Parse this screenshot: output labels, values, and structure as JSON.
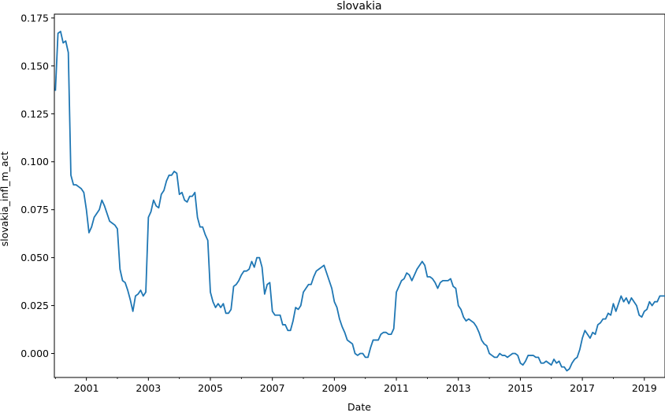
{
  "chart_data": {
    "type": "line",
    "title": "slovakia",
    "xlabel": "Date",
    "ylabel": "slovakia_infl_m_act",
    "x_range": [
      "2000-01",
      "2019-09"
    ],
    "ylim": [
      -0.0125,
      0.177
    ],
    "x_ticks": [
      "2001",
      "2003",
      "2005",
      "2007",
      "2009",
      "2011",
      "2013",
      "2015",
      "2017",
      "2019"
    ],
    "y_ticks": [
      "0.000",
      "0.025",
      "0.050",
      "0.075",
      "0.100",
      "0.125",
      "0.150",
      "0.175"
    ],
    "y_tick_values": [
      0.0,
      0.025,
      0.05,
      0.075,
      0.1,
      0.125,
      0.15,
      0.175
    ],
    "grid": false,
    "line_color": "#1f77b4",
    "series": [
      {
        "points": [
          [
            "2000-01",
            0.137
          ],
          [
            "2000-02",
            0.167
          ],
          [
            "2000-03",
            0.168
          ],
          [
            "2000-04",
            0.162
          ],
          [
            "2000-05",
            0.163
          ],
          [
            "2000-06",
            0.157
          ],
          [
            "2000-07",
            0.093
          ],
          [
            "2000-08",
            0.088
          ],
          [
            "2000-09",
            0.088
          ],
          [
            "2000-10",
            0.087
          ],
          [
            "2000-11",
            0.086
          ],
          [
            "2000-12",
            0.084
          ],
          [
            "2001-01",
            0.075
          ],
          [
            "2001-02",
            0.063
          ],
          [
            "2001-03",
            0.066
          ],
          [
            "2001-04",
            0.071
          ],
          [
            "2001-05",
            0.073
          ],
          [
            "2001-06",
            0.075
          ],
          [
            "2001-07",
            0.08
          ],
          [
            "2001-08",
            0.077
          ],
          [
            "2001-09",
            0.073
          ],
          [
            "2001-10",
            0.069
          ],
          [
            "2001-11",
            0.068
          ],
          [
            "2001-12",
            0.067
          ],
          [
            "2002-01",
            0.065
          ],
          [
            "2002-02",
            0.044
          ],
          [
            "2002-03",
            0.038
          ],
          [
            "2002-04",
            0.037
          ],
          [
            "2002-05",
            0.033
          ],
          [
            "2002-06",
            0.028
          ],
          [
            "2002-07",
            0.022
          ],
          [
            "2002-08",
            0.03
          ],
          [
            "2002-09",
            0.031
          ],
          [
            "2002-10",
            0.033
          ],
          [
            "2002-11",
            0.03
          ],
          [
            "2002-12",
            0.032
          ],
          [
            "2003-01",
            0.071
          ],
          [
            "2003-02",
            0.074
          ],
          [
            "2003-03",
            0.08
          ],
          [
            "2003-04",
            0.077
          ],
          [
            "2003-05",
            0.076
          ],
          [
            "2003-06",
            0.083
          ],
          [
            "2003-07",
            0.085
          ],
          [
            "2003-08",
            0.09
          ],
          [
            "2003-09",
            0.093
          ],
          [
            "2003-10",
            0.093
          ],
          [
            "2003-11",
            0.095
          ],
          [
            "2003-12",
            0.094
          ],
          [
            "2004-01",
            0.083
          ],
          [
            "2004-02",
            0.084
          ],
          [
            "2004-03",
            0.08
          ],
          [
            "2004-04",
            0.079
          ],
          [
            "2004-05",
            0.082
          ],
          [
            "2004-06",
            0.082
          ],
          [
            "2004-07",
            0.084
          ],
          [
            "2004-08",
            0.071
          ],
          [
            "2004-09",
            0.066
          ],
          [
            "2004-10",
            0.066
          ],
          [
            "2004-11",
            0.062
          ],
          [
            "2004-12",
            0.059
          ],
          [
            "2005-01",
            0.032
          ],
          [
            "2005-02",
            0.027
          ],
          [
            "2005-03",
            0.024
          ],
          [
            "2005-04",
            0.026
          ],
          [
            "2005-05",
            0.024
          ],
          [
            "2005-06",
            0.026
          ],
          [
            "2005-07",
            0.021
          ],
          [
            "2005-08",
            0.021
          ],
          [
            "2005-09",
            0.023
          ],
          [
            "2005-10",
            0.035
          ],
          [
            "2005-11",
            0.036
          ],
          [
            "2005-12",
            0.038
          ],
          [
            "2006-01",
            0.041
          ],
          [
            "2006-02",
            0.043
          ],
          [
            "2006-03",
            0.043
          ],
          [
            "2006-04",
            0.044
          ],
          [
            "2006-05",
            0.048
          ],
          [
            "2006-06",
            0.045
          ],
          [
            "2006-07",
            0.05
          ],
          [
            "2006-08",
            0.05
          ],
          [
            "2006-09",
            0.045
          ],
          [
            "2006-10",
            0.031
          ],
          [
            "2006-11",
            0.036
          ],
          [
            "2006-12",
            0.037
          ],
          [
            "2007-01",
            0.022
          ],
          [
            "2007-02",
            0.02
          ],
          [
            "2007-03",
            0.02
          ],
          [
            "2007-04",
            0.02
          ],
          [
            "2007-05",
            0.015
          ],
          [
            "2007-06",
            0.015
          ],
          [
            "2007-07",
            0.012
          ],
          [
            "2007-08",
            0.012
          ],
          [
            "2007-09",
            0.017
          ],
          [
            "2007-10",
            0.024
          ],
          [
            "2007-11",
            0.023
          ],
          [
            "2007-12",
            0.025
          ],
          [
            "2008-01",
            0.032
          ],
          [
            "2008-02",
            0.034
          ],
          [
            "2008-03",
            0.036
          ],
          [
            "2008-04",
            0.036
          ],
          [
            "2008-05",
            0.04
          ],
          [
            "2008-06",
            0.043
          ],
          [
            "2008-07",
            0.044
          ],
          [
            "2008-08",
            0.045
          ],
          [
            "2008-09",
            0.046
          ],
          [
            "2008-10",
            0.042
          ],
          [
            "2008-11",
            0.038
          ],
          [
            "2008-12",
            0.034
          ],
          [
            "2009-01",
            0.027
          ],
          [
            "2009-02",
            0.024
          ],
          [
            "2009-03",
            0.018
          ],
          [
            "2009-04",
            0.014
          ],
          [
            "2009-05",
            0.011
          ],
          [
            "2009-06",
            0.007
          ],
          [
            "2009-07",
            0.006
          ],
          [
            "2009-08",
            0.005
          ],
          [
            "2009-09",
            0.0
          ],
          [
            "2009-10",
            -0.001
          ],
          [
            "2009-11",
            0.0
          ],
          [
            "2009-12",
            0.0
          ],
          [
            "2010-01",
            -0.002
          ],
          [
            "2010-02",
            -0.002
          ],
          [
            "2010-03",
            0.003
          ],
          [
            "2010-04",
            0.007
          ],
          [
            "2010-05",
            0.007
          ],
          [
            "2010-06",
            0.007
          ],
          [
            "2010-07",
            0.01
          ],
          [
            "2010-08",
            0.011
          ],
          [
            "2010-09",
            0.011
          ],
          [
            "2010-10",
            0.01
          ],
          [
            "2010-11",
            0.01
          ],
          [
            "2010-12",
            0.013
          ],
          [
            "2011-01",
            0.032
          ],
          [
            "2011-02",
            0.035
          ],
          [
            "2011-03",
            0.038
          ],
          [
            "2011-04",
            0.039
          ],
          [
            "2011-05",
            0.042
          ],
          [
            "2011-06",
            0.041
          ],
          [
            "2011-07",
            0.038
          ],
          [
            "2011-08",
            0.041
          ],
          [
            "2011-09",
            0.044
          ],
          [
            "2011-10",
            0.046
          ],
          [
            "2011-11",
            0.048
          ],
          [
            "2011-12",
            0.046
          ],
          [
            "2012-01",
            0.04
          ],
          [
            "2012-02",
            0.04
          ],
          [
            "2012-03",
            0.039
          ],
          [
            "2012-04",
            0.037
          ],
          [
            "2012-05",
            0.034
          ],
          [
            "2012-06",
            0.037
          ],
          [
            "2012-07",
            0.038
          ],
          [
            "2012-08",
            0.038
          ],
          [
            "2012-09",
            0.038
          ],
          [
            "2012-10",
            0.039
          ],
          [
            "2012-11",
            0.035
          ],
          [
            "2012-12",
            0.034
          ],
          [
            "2013-01",
            0.025
          ],
          [
            "2013-02",
            0.023
          ],
          [
            "2013-03",
            0.019
          ],
          [
            "2013-04",
            0.017
          ],
          [
            "2013-05",
            0.018
          ],
          [
            "2013-06",
            0.017
          ],
          [
            "2013-07",
            0.016
          ],
          [
            "2013-08",
            0.014
          ],
          [
            "2013-09",
            0.011
          ],
          [
            "2013-10",
            0.007
          ],
          [
            "2013-11",
            0.005
          ],
          [
            "2013-12",
            0.004
          ],
          [
            "2014-01",
            0.0
          ],
          [
            "2014-02",
            -0.001
          ],
          [
            "2014-03",
            -0.002
          ],
          [
            "2014-04",
            -0.002
          ],
          [
            "2014-05",
            0.0
          ],
          [
            "2014-06",
            -0.001
          ],
          [
            "2014-07",
            -0.001
          ],
          [
            "2014-08",
            -0.002
          ],
          [
            "2014-09",
            -0.001
          ],
          [
            "2014-10",
            0.0
          ],
          [
            "2014-11",
            0.0
          ],
          [
            "2014-12",
            -0.001
          ],
          [
            "2015-01",
            -0.005
          ],
          [
            "2015-02",
            -0.006
          ],
          [
            "2015-03",
            -0.004
          ],
          [
            "2015-04",
            -0.001
          ],
          [
            "2015-05",
            -0.001
          ],
          [
            "2015-06",
            -0.001
          ],
          [
            "2015-07",
            -0.002
          ],
          [
            "2015-08",
            -0.002
          ],
          [
            "2015-09",
            -0.005
          ],
          [
            "2015-10",
            -0.005
          ],
          [
            "2015-11",
            -0.004
          ],
          [
            "2015-12",
            -0.005
          ],
          [
            "2016-01",
            -0.006
          ],
          [
            "2016-02",
            -0.003
          ],
          [
            "2016-03",
            -0.005
          ],
          [
            "2016-04",
            -0.004
          ],
          [
            "2016-05",
            -0.007
          ],
          [
            "2016-06",
            -0.007
          ],
          [
            "2016-07",
            -0.009
          ],
          [
            "2016-08",
            -0.008
          ],
          [
            "2016-09",
            -0.005
          ],
          [
            "2016-10",
            -0.003
          ],
          [
            "2016-11",
            -0.002
          ],
          [
            "2016-12",
            0.002
          ],
          [
            "2017-01",
            0.008
          ],
          [
            "2017-02",
            0.012
          ],
          [
            "2017-03",
            0.01
          ],
          [
            "2017-04",
            0.008
          ],
          [
            "2017-05",
            0.011
          ],
          [
            "2017-06",
            0.01
          ],
          [
            "2017-07",
            0.015
          ],
          [
            "2017-08",
            0.016
          ],
          [
            "2017-09",
            0.018
          ],
          [
            "2017-10",
            0.018
          ],
          [
            "2017-11",
            0.021
          ],
          [
            "2017-12",
            0.02
          ],
          [
            "2018-01",
            0.026
          ],
          [
            "2018-02",
            0.022
          ],
          [
            "2018-03",
            0.026
          ],
          [
            "2018-04",
            0.03
          ],
          [
            "2018-05",
            0.027
          ],
          [
            "2018-06",
            0.029
          ],
          [
            "2018-07",
            0.026
          ],
          [
            "2018-08",
            0.029
          ],
          [
            "2018-09",
            0.027
          ],
          [
            "2018-10",
            0.025
          ],
          [
            "2018-11",
            0.02
          ],
          [
            "2018-12",
            0.019
          ],
          [
            "2019-01",
            0.022
          ],
          [
            "2019-02",
            0.023
          ],
          [
            "2019-03",
            0.027
          ],
          [
            "2019-04",
            0.025
          ],
          [
            "2019-05",
            0.027
          ],
          [
            "2019-06",
            0.027
          ],
          [
            "2019-07",
            0.03
          ],
          [
            "2019-08",
            0.03
          ],
          [
            "2019-09",
            0.03
          ]
        ]
      }
    ]
  }
}
